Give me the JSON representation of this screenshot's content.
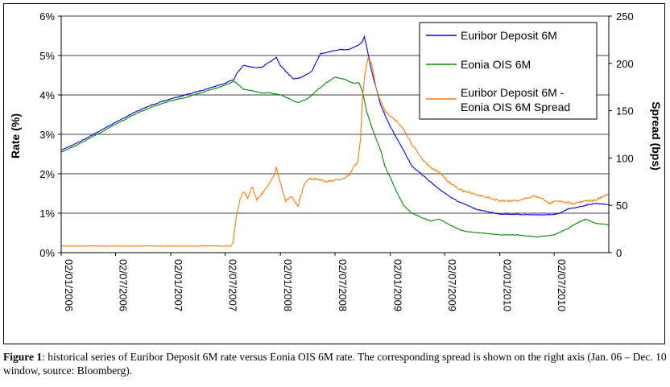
{
  "chart_data": {
    "type": "line",
    "ylabel": "Rate (%)",
    "y2label": "Spread (bps)",
    "ylim": [
      0,
      6
    ],
    "y2lim": [
      0,
      250
    ],
    "yticks": [
      "0%",
      "1%",
      "2%",
      "3%",
      "4%",
      "5%",
      "6%"
    ],
    "y2ticks": [
      "0",
      "50",
      "100",
      "150",
      "200",
      "250"
    ],
    "xlim": [
      "2006-01-02",
      "2010-12-31"
    ],
    "xticks": [
      "02/01/2006",
      "02/07/2006",
      "02/01/2007",
      "02/07/2007",
      "02/01/2008",
      "02/07/2008",
      "02/01/2009",
      "02/07/2009",
      "02/01/2010",
      "02/07/2010"
    ],
    "legend_placement": "top-right",
    "grid": "horizontal",
    "series": [
      {
        "name": "Euribor Deposit 6M",
        "axis": "left",
        "color": "#0000dd",
        "x": [
          "2006-01-02",
          "2006-03-01",
          "2006-05-01",
          "2006-07-01",
          "2006-09-01",
          "2006-11-01",
          "2007-01-02",
          "2007-03-01",
          "2007-05-01",
          "2007-07-02",
          "2007-08-01",
          "2007-08-10",
          "2007-09-01",
          "2007-10-01",
          "2007-11-01",
          "2007-12-01",
          "2007-12-20",
          "2008-01-02",
          "2008-01-20",
          "2008-02-15",
          "2008-03-15",
          "2008-04-15",
          "2008-05-15",
          "2008-06-15",
          "2008-07-15",
          "2008-08-15",
          "2008-09-15",
          "2008-10-01",
          "2008-10-08",
          "2008-10-20",
          "2008-11-01",
          "2008-11-15",
          "2008-12-01",
          "2008-12-15",
          "2009-01-02",
          "2009-01-20",
          "2009-02-15",
          "2009-03-15",
          "2009-04-15",
          "2009-05-15",
          "2009-06-15",
          "2009-07-15",
          "2009-08-15",
          "2009-09-15",
          "2009-10-15",
          "2009-11-15",
          "2010-01-02",
          "2010-03-01",
          "2010-05-01",
          "2010-06-15",
          "2010-07-15",
          "2010-08-15",
          "2010-09-15",
          "2010-10-15",
          "2010-11-15",
          "2010-12-31"
        ],
        "values": [
          2.6,
          2.8,
          3.05,
          3.3,
          3.55,
          3.75,
          3.9,
          4.02,
          4.15,
          4.3,
          4.4,
          4.55,
          4.75,
          4.7,
          4.7,
          4.85,
          4.95,
          4.75,
          4.6,
          4.4,
          4.45,
          4.6,
          5.05,
          5.1,
          5.15,
          5.15,
          5.25,
          5.35,
          5.48,
          5.05,
          4.6,
          4.2,
          3.75,
          3.5,
          3.2,
          2.95,
          2.6,
          2.2,
          2.0,
          1.8,
          1.6,
          1.45,
          1.3,
          1.2,
          1.1,
          1.05,
          0.98,
          0.97,
          0.96,
          0.96,
          0.98,
          1.1,
          1.15,
          1.2,
          1.25,
          1.22
        ]
      },
      {
        "name": "Eonia OIS 6M",
        "axis": "left",
        "color": "#008800",
        "x": [
          "2006-01-02",
          "2006-03-01",
          "2006-05-01",
          "2006-07-01",
          "2006-09-01",
          "2006-11-01",
          "2007-01-02",
          "2007-03-01",
          "2007-05-01",
          "2007-07-02",
          "2007-08-01",
          "2007-09-01",
          "2007-10-01",
          "2007-11-01",
          "2007-12-01",
          "2008-01-02",
          "2008-02-01",
          "2008-03-01",
          "2008-04-01",
          "2008-05-01",
          "2008-06-01",
          "2008-07-01",
          "2008-08-01",
          "2008-09-01",
          "2008-09-20",
          "2008-10-01",
          "2008-10-15",
          "2008-11-01",
          "2008-11-15",
          "2008-12-01",
          "2008-12-15",
          "2009-01-02",
          "2009-01-20",
          "2009-02-15",
          "2009-03-15",
          "2009-04-15",
          "2009-05-15",
          "2009-06-15",
          "2009-07-15",
          "2009-09-01",
          "2009-11-01",
          "2010-01-02",
          "2010-03-01",
          "2010-05-01",
          "2010-07-01",
          "2010-08-15",
          "2010-09-15",
          "2010-10-15",
          "2010-11-15",
          "2010-12-31"
        ],
        "values": [
          2.55,
          2.75,
          3.0,
          3.25,
          3.5,
          3.7,
          3.85,
          3.95,
          4.1,
          4.25,
          4.35,
          4.15,
          4.1,
          4.05,
          4.05,
          4.0,
          3.9,
          3.8,
          3.9,
          4.1,
          4.3,
          4.45,
          4.4,
          4.3,
          4.3,
          4.1,
          3.6,
          3.2,
          2.9,
          2.6,
          2.2,
          1.9,
          1.6,
          1.2,
          1.0,
          0.9,
          0.8,
          0.85,
          0.72,
          0.55,
          0.5,
          0.45,
          0.45,
          0.4,
          0.45,
          0.6,
          0.75,
          0.85,
          0.75,
          0.7
        ]
      },
      {
        "name": "Euribor Deposit 6M - Eonia OIS 6M Spread",
        "axis": "right",
        "color": "#ff7700",
        "x": [
          "2006-01-02",
          "2006-04-01",
          "2006-07-01",
          "2006-10-01",
          "2007-01-02",
          "2007-04-01",
          "2007-07-01",
          "2007-07-20",
          "2007-07-28",
          "2007-08-09",
          "2007-08-20",
          "2007-09-01",
          "2007-09-15",
          "2007-10-01",
          "2007-10-15",
          "2007-11-01",
          "2007-11-20",
          "2007-12-10",
          "2007-12-20",
          "2008-01-05",
          "2008-01-20",
          "2008-02-10",
          "2008-03-01",
          "2008-03-20",
          "2008-04-05",
          "2008-05-01",
          "2008-06-01",
          "2008-07-01",
          "2008-08-01",
          "2008-08-20",
          "2008-09-01",
          "2008-09-15",
          "2008-09-25",
          "2008-10-01",
          "2008-10-10",
          "2008-10-20",
          "2008-11-01",
          "2008-11-15",
          "2008-12-01",
          "2008-12-15",
          "2009-01-02",
          "2009-01-20",
          "2009-02-15",
          "2009-03-15",
          "2009-04-15",
          "2009-05-15",
          "2009-06-15",
          "2009-07-15",
          "2009-09-01",
          "2009-11-01",
          "2010-01-02",
          "2010-03-01",
          "2010-05-01",
          "2010-05-20",
          "2010-06-15",
          "2010-07-15",
          "2010-09-01",
          "2010-10-15",
          "2010-11-15",
          "2010-12-31"
        ],
        "values": [
          7,
          7,
          7,
          7,
          7,
          7,
          7,
          7,
          10,
          40,
          55,
          65,
          58,
          70,
          55,
          62,
          70,
          80,
          90,
          70,
          55,
          60,
          48,
          72,
          78,
          78,
          75,
          76,
          78,
          82,
          90,
          95,
          120,
          160,
          190,
          205,
          200,
          175,
          160,
          150,
          145,
          140,
          130,
          115,
          100,
          90,
          85,
          75,
          65,
          60,
          55,
          55,
          60,
          58,
          52,
          55,
          52,
          55,
          55,
          62
        ]
      }
    ],
    "title": ""
  },
  "caption": {
    "label": "Figure 1",
    "text": ": historical series of Euribor Deposit 6M rate versus Eonia OIS 6M rate. The corresponding spread is shown on the right axis (Jan. 06 – Dec. 10 window, source: Bloomberg)."
  }
}
